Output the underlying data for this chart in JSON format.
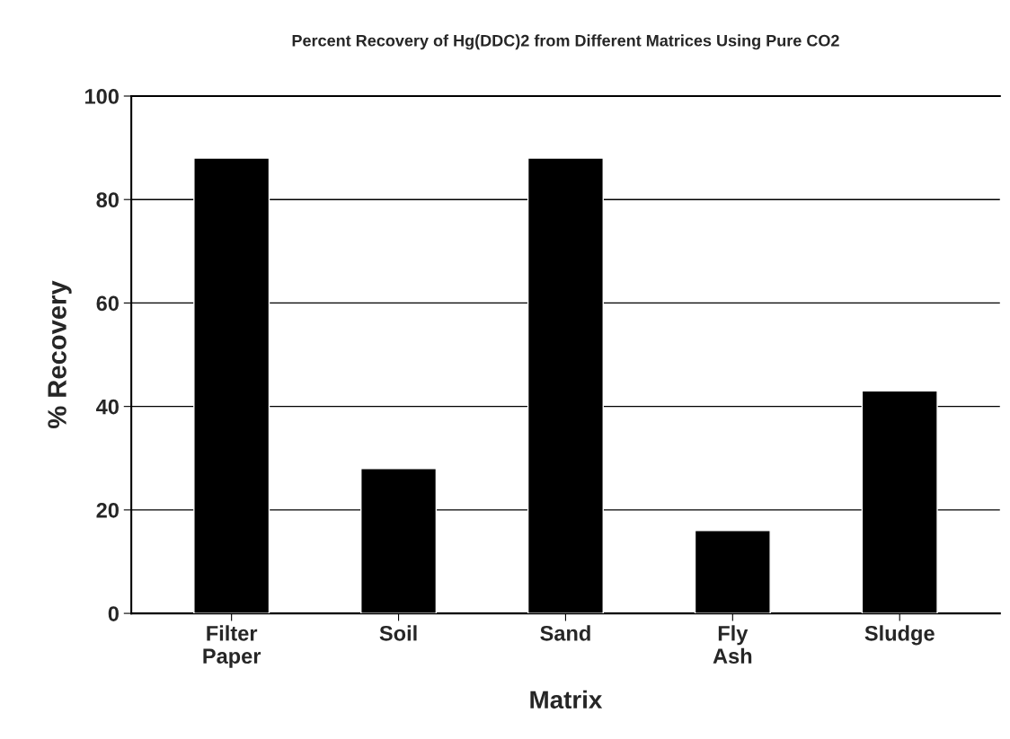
{
  "chart_data": {
    "type": "bar",
    "title": "Percent Recovery of Hg(DDC)2 from Different Matrices Using Pure CO2",
    "xlabel": "Matrix",
    "ylabel": "% Recovery",
    "categories": [
      "Filter\nPaper",
      "Soil",
      "Sand",
      "Fly\nAsh",
      "Sludge"
    ],
    "values": [
      88,
      28,
      88,
      16,
      43
    ],
    "color": "#000000",
    "ylim": [
      0,
      100
    ],
    "yticks": [
      0,
      20,
      40,
      60,
      80,
      100
    ],
    "grid": "y"
  }
}
